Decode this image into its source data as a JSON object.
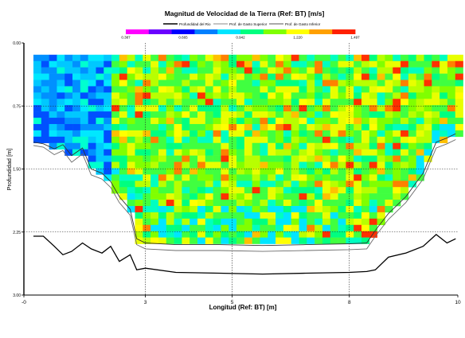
{
  "chart_data": {
    "type": "heatmap",
    "title": "Magnitud de Velocidad de la Tierra (Ref: BT) [m/s]",
    "xlabel": "Longitud (Ref: BT) [m]",
    "ylabel": "Profundidad [m]",
    "xlim": [
      0,
      10
    ],
    "ylim": [
      3.0,
      0.0
    ],
    "y_inverted": true,
    "x_ticks": [
      "-0",
      "3",
      "5",
      "8",
      "10"
    ],
    "x_tick_values": [
      0,
      2.8,
      4.8,
      7.5,
      10
    ],
    "y_ticks": [
      "0.00",
      "0.75",
      "1.50",
      "2.25",
      "3.00"
    ],
    "y_tick_values": [
      0,
      0.75,
      1.5,
      2.25,
      3.0
    ],
    "grid": true,
    "colorbar": {
      "ticks": [
        "0.387",
        "0.665",
        "0.942",
        "1.220",
        "1.497"
      ],
      "colors": [
        "#ff00ff",
        "#6a00ff",
        "#0000ff",
        "#0080ff",
        "#00e5ff",
        "#00ff80",
        "#80ff00",
        "#ffff00",
        "#ffa000",
        "#ff2000"
      ]
    },
    "legend": {
      "position": "top",
      "entries": [
        "Profundidad del Rio",
        "Prof. de Gasto Superior",
        "Prof. de Gasto Inferior"
      ]
    },
    "measured_top_depth": 0.14,
    "profile_x": [
      0.22,
      0.45,
      0.7,
      0.9,
      1.1,
      1.35,
      1.55,
      1.8,
      2.0,
      2.2,
      2.45,
      2.6,
      2.8,
      3.5,
      4.5,
      5.5,
      6.5,
      7.5,
      7.9,
      8.1,
      8.4,
      8.8,
      9.2,
      9.5,
      9.75,
      9.95
    ],
    "series": [
      {
        "name": "Profundidad del Rio",
        "y": [
          2.3,
          2.3,
          2.42,
          2.52,
          2.48,
          2.38,
          2.45,
          2.5,
          2.42,
          2.6,
          2.52,
          2.7,
          2.68,
          2.73,
          2.74,
          2.75,
          2.74,
          2.73,
          2.72,
          2.7,
          2.55,
          2.5,
          2.42,
          2.28,
          2.38,
          2.33
        ]
      },
      {
        "name": "Prof. de Gasto Superior",
        "y": [
          1.22,
          1.24,
          1.33,
          1.28,
          1.42,
          1.32,
          1.57,
          1.62,
          1.72,
          1.9,
          2.05,
          2.4,
          2.45,
          2.47,
          2.47,
          2.48,
          2.47,
          2.46,
          2.45,
          2.3,
          2.1,
          1.9,
          1.62,
          1.25,
          1.2,
          1.15
        ]
      },
      {
        "name": "Prof. de Gasto Inferior",
        "y": [
          1.18,
          1.2,
          1.26,
          1.21,
          1.34,
          1.25,
          1.5,
          1.55,
          1.65,
          1.83,
          1.98,
          2.33,
          2.38,
          2.4,
          2.4,
          2.41,
          2.4,
          2.39,
          2.38,
          2.23,
          2.03,
          1.83,
          1.55,
          1.18,
          1.13,
          1.08
        ]
      }
    ]
  }
}
